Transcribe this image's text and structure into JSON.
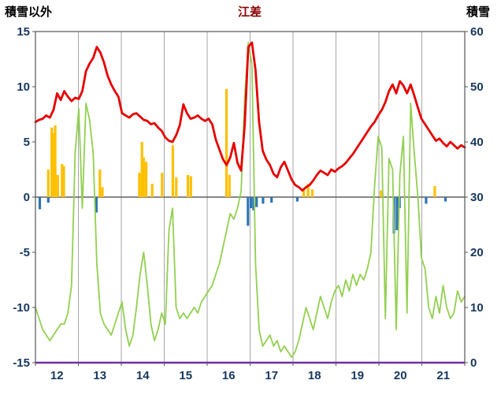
{
  "header": {
    "left_label": "積雪以外",
    "title": "江差",
    "right_label": "積雪"
  },
  "chart_data": {
    "type": "line",
    "title": "江差",
    "left_axis": {
      "label": "積雪以外",
      "min": -15,
      "max": 15,
      "ticks": [
        15,
        10,
        5,
        0,
        -5,
        -10,
        -15
      ]
    },
    "right_axis": {
      "label": "積雪",
      "min": 0,
      "max": 60,
      "ticks": [
        60,
        50,
        40,
        30,
        20,
        10,
        0
      ]
    },
    "x_axis": {
      "labels": [
        "12",
        "13",
        "14",
        "15",
        "16",
        "17",
        "18",
        "19",
        "20",
        "21"
      ],
      "days": 10,
      "samples_per_day": 12
    },
    "styles": {
      "background": "#ffffff",
      "grid_color": "#a6a6a6",
      "border_color": "#555555",
      "zero_line_color": "#404040",
      "tick_label_color": "#17375d",
      "title_color": "#8b0000",
      "bottom_line_color": "#7030a0"
    },
    "series": [
      {
        "name": "orange-bars-up",
        "type": "bar",
        "axis": "left",
        "color": "#ffc000",
        "points": [
          [
            0.3,
            2.5
          ],
          [
            0.38,
            6.3
          ],
          [
            0.42,
            5.8
          ],
          [
            0.46,
            6.5
          ],
          [
            0.52,
            2.0
          ],
          [
            0.62,
            3.0
          ],
          [
            0.66,
            2.8
          ],
          [
            1.5,
            2.5
          ],
          [
            1.56,
            0.9
          ],
          [
            2.42,
            2.2
          ],
          [
            2.48,
            5.0
          ],
          [
            2.52,
            3.6
          ],
          [
            2.58,
            3.2
          ],
          [
            2.72,
            1.2
          ],
          [
            2.95,
            2.2
          ],
          [
            3.2,
            4.7
          ],
          [
            3.28,
            1.8
          ],
          [
            3.55,
            2.0
          ],
          [
            3.62,
            1.9
          ],
          [
            4.45,
            9.8
          ],
          [
            4.52,
            2.0
          ],
          [
            6.25,
            0.8
          ],
          [
            6.35,
            1.2
          ],
          [
            6.45,
            0.7
          ],
          [
            8.05,
            0.6
          ],
          [
            9.3,
            1.0
          ]
        ]
      },
      {
        "name": "blue-bars-down",
        "type": "bar",
        "axis": "left",
        "color": "#2e75b6",
        "points": [
          [
            0.1,
            -1.1
          ],
          [
            0.3,
            -0.5
          ],
          [
            1.42,
            -1.4
          ],
          [
            4.95,
            -2.6
          ],
          [
            5.02,
            -1.0
          ],
          [
            5.08,
            -1.2
          ],
          [
            5.15,
            -0.9
          ],
          [
            5.3,
            -0.6
          ],
          [
            5.5,
            -0.5
          ],
          [
            6.1,
            -0.4
          ],
          [
            8.35,
            -3.3
          ],
          [
            8.42,
            -3.0
          ],
          [
            8.48,
            -1.0
          ],
          [
            9.1,
            -0.6
          ],
          [
            9.55,
            -0.4
          ]
        ]
      },
      {
        "name": "green-line",
        "type": "line",
        "axis": "right",
        "color": "#92d050",
        "width": 1.8,
        "values": [
          10,
          8,
          6,
          5,
          4,
          5,
          6,
          7,
          7,
          9,
          14,
          38,
          46,
          28,
          47,
          44,
          38,
          18,
          9,
          7,
          6,
          5,
          7,
          9,
          11,
          6,
          3,
          5,
          10,
          16,
          20,
          14,
          7,
          4,
          6,
          9,
          7,
          24,
          28,
          10,
          8,
          9,
          8,
          9,
          10,
          9,
          11,
          12,
          13,
          14,
          16,
          18,
          21,
          24,
          27,
          26,
          28,
          31,
          48,
          58,
          54,
          18,
          6,
          3,
          4,
          5,
          3,
          4,
          2,
          3,
          2,
          1,
          2,
          4,
          7,
          10,
          8,
          6,
          9,
          12,
          10,
          8,
          11,
          13,
          14,
          12,
          15,
          13,
          16,
          14,
          16,
          15,
          17,
          20,
          32,
          41,
          39,
          8,
          37,
          35,
          6,
          34,
          41,
          9,
          47,
          38,
          30,
          19,
          17,
          10,
          8,
          12,
          9,
          14,
          10,
          8,
          9,
          13,
          11,
          12
        ]
      },
      {
        "name": "red-line",
        "type": "line",
        "axis": "left",
        "color": "#e60000",
        "width": 2.8,
        "values": [
          6.8,
          7.0,
          7.1,
          7.4,
          7.2,
          7.9,
          9.4,
          8.8,
          9.6,
          9.1,
          8.7,
          9.0,
          8.9,
          9.6,
          11.4,
          12.1,
          12.6,
          13.6,
          13.1,
          12.2,
          11.0,
          10.2,
          9.6,
          9.1,
          7.6,
          7.4,
          7.2,
          7.5,
          7.6,
          7.3,
          7.0,
          6.9,
          6.6,
          6.7,
          6.3,
          6.0,
          5.4,
          5.1,
          5.0,
          5.6,
          6.5,
          8.4,
          7.6,
          7.1,
          7.2,
          7.4,
          7.1,
          6.9,
          7.1,
          6.6,
          5.2,
          4.3,
          3.4,
          2.9,
          3.6,
          4.9,
          3.1,
          2.4,
          6.5,
          13.6,
          14.0,
          11.5,
          6.8,
          4.2,
          3.4,
          2.9,
          2.1,
          1.8,
          2.7,
          3.2,
          2.4,
          1.6,
          1.1,
          0.9,
          0.6,
          0.9,
          1.1,
          1.5,
          2.0,
          2.4,
          2.2,
          2.0,
          2.5,
          2.3,
          2.6,
          2.8,
          3.1,
          3.5,
          3.9,
          4.4,
          4.9,
          5.4,
          5.9,
          6.4,
          6.8,
          7.4,
          7.9,
          8.6,
          9.6,
          10.2,
          9.4,
          10.5,
          10.1,
          9.4,
          10.2,
          9.2,
          8.1,
          7.1,
          6.6,
          6.1,
          5.6,
          5.1,
          5.3,
          4.9,
          4.6,
          5.0,
          4.7,
          4.4,
          4.7,
          4.5
        ]
      }
    ]
  }
}
